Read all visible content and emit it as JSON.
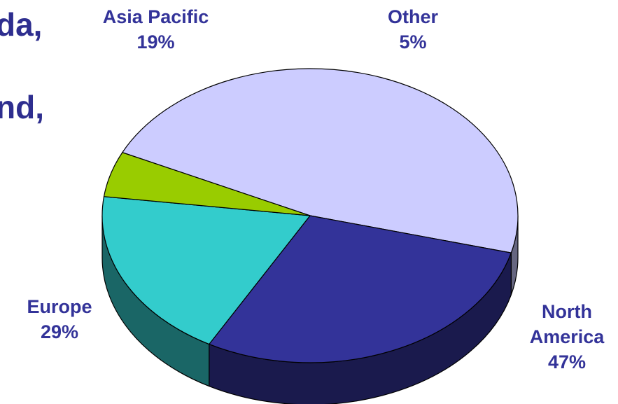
{
  "background_text": {
    "fragment_1": "da,",
    "fragment_2": "nd,"
  },
  "chart_data": {
    "type": "pie",
    "style": "3d",
    "title": "",
    "slices": [
      {
        "label": "North America",
        "label_lines": [
          "North",
          "America"
        ],
        "percent_text": "47%",
        "value": 47,
        "color": "#ccccff",
        "side_color": "#666680"
      },
      {
        "label": "Europe",
        "label_lines": [
          "Europe"
        ],
        "percent_text": "29%",
        "value": 29,
        "color": "#333399",
        "side_color": "#1a1a4d"
      },
      {
        "label": "Asia Pacific",
        "label_lines": [
          "Asia Pacific"
        ],
        "percent_text": "19%",
        "value": 19,
        "color": "#33cccc",
        "side_color": "#1a6666"
      },
      {
        "label": "Other",
        "label_lines": [
          "Other"
        ],
        "percent_text": "5%",
        "value": 5,
        "color": "#99cc00",
        "side_color": "#4d6600"
      }
    ],
    "legend": "none"
  }
}
